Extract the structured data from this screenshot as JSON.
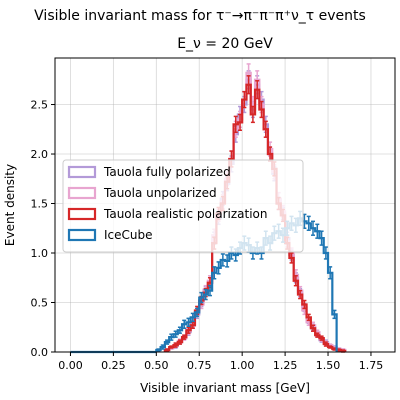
{
  "chart_data": {
    "type": "histogram",
    "title": "Visible invariant mass for τ⁻→π⁻π⁻π⁺ν_τ events",
    "subtitle": "E_ν = 20 GeV",
    "xlabel": "Visible invariant mass [GeV]",
    "ylabel": "Event density",
    "xlim": [
      -0.09,
      1.89
    ],
    "ylim": [
      0,
      2.97
    ],
    "xticks": [
      0.0,
      0.25,
      0.5,
      0.75,
      1.0,
      1.25,
      1.5,
      1.75
    ],
    "xtick_labels": [
      "0.00",
      "0.25",
      "0.50",
      "0.75",
      "1.00",
      "1.25",
      "1.50",
      "1.75"
    ],
    "yticks": [
      0.0,
      0.5,
      1.0,
      1.5,
      2.0,
      2.5
    ],
    "ytick_labels": [
      "0.0",
      "0.5",
      "1.0",
      "1.5",
      "2.0",
      "2.5"
    ],
    "grid": true,
    "legend_position": "center-left",
    "bin_width": 0.025,
    "series": [
      {
        "name": "Tauola fully polarized",
        "color": "#b39ad8",
        "alpha": 1.0,
        "bin_start": 0.55,
        "values": [
          0.02,
          0.04,
          0.06,
          0.1,
          0.15,
          0.2,
          0.27,
          0.38,
          0.5,
          0.62,
          0.7,
          1.15,
          1.35,
          1.55,
          1.7,
          1.9,
          2.2,
          2.4,
          2.5,
          2.75,
          2.45,
          2.7,
          2.55,
          2.3,
          2.0,
          1.8,
          1.5,
          1.4,
          1.15,
          0.98,
          0.75,
          0.6,
          0.45,
          0.32,
          0.25,
          0.18,
          0.12,
          0.1,
          0.06,
          0.05,
          0.03,
          0.02
        ],
        "errors": [
          0.01,
          0.01,
          0.02,
          0.02,
          0.02,
          0.03,
          0.03,
          0.04,
          0.04,
          0.04,
          0.05,
          0.06,
          0.06,
          0.07,
          0.07,
          0.08,
          0.08,
          0.08,
          0.08,
          0.09,
          0.08,
          0.09,
          0.08,
          0.08,
          0.07,
          0.07,
          0.06,
          0.06,
          0.06,
          0.05,
          0.05,
          0.04,
          0.04,
          0.03,
          0.03,
          0.02,
          0.02,
          0.02,
          0.01,
          0.01,
          0.01,
          0.01
        ]
      },
      {
        "name": "Tauola unpolarized",
        "color": "#e8a5d0",
        "alpha": 1.0,
        "bin_start": 0.55,
        "values": [
          0.02,
          0.04,
          0.07,
          0.11,
          0.14,
          0.21,
          0.28,
          0.4,
          0.48,
          0.63,
          0.72,
          1.18,
          1.38,
          1.52,
          1.75,
          1.95,
          2.25,
          2.35,
          2.55,
          2.82,
          2.5,
          2.75,
          2.5,
          2.25,
          2.05,
          1.82,
          1.55,
          1.42,
          1.12,
          1.0,
          0.78,
          0.62,
          0.42,
          0.3,
          0.27,
          0.2,
          0.13,
          0.09,
          0.07,
          0.04,
          0.03,
          0.02
        ],
        "errors": [
          0.01,
          0.01,
          0.02,
          0.02,
          0.02,
          0.03,
          0.03,
          0.04,
          0.04,
          0.04,
          0.05,
          0.06,
          0.06,
          0.07,
          0.07,
          0.08,
          0.08,
          0.08,
          0.08,
          0.09,
          0.08,
          0.09,
          0.08,
          0.08,
          0.07,
          0.07,
          0.06,
          0.06,
          0.06,
          0.05,
          0.05,
          0.04,
          0.04,
          0.03,
          0.03,
          0.02,
          0.02,
          0.02,
          0.01,
          0.01,
          0.01,
          0.01
        ]
      },
      {
        "name": "Tauola realistic polarization",
        "color": "#d62728",
        "alpha": 1.0,
        "bin_start": 0.55,
        "values": [
          0.02,
          0.05,
          0.07,
          0.1,
          0.15,
          0.22,
          0.27,
          0.42,
          0.52,
          0.6,
          0.7,
          1.1,
          1.4,
          1.5,
          1.72,
          1.95,
          2.3,
          2.32,
          2.55,
          2.7,
          2.4,
          2.65,
          2.45,
          2.25,
          2.0,
          1.85,
          1.5,
          1.38,
          1.1,
          0.95,
          0.72,
          0.58,
          0.48,
          0.35,
          0.24,
          0.17,
          0.14,
          0.08,
          0.05,
          0.03,
          0.02,
          0.01
        ],
        "errors": [
          0.01,
          0.01,
          0.02,
          0.02,
          0.02,
          0.03,
          0.03,
          0.04,
          0.04,
          0.04,
          0.05,
          0.06,
          0.06,
          0.07,
          0.07,
          0.08,
          0.08,
          0.08,
          0.08,
          0.09,
          0.08,
          0.09,
          0.08,
          0.08,
          0.07,
          0.07,
          0.06,
          0.06,
          0.06,
          0.05,
          0.05,
          0.04,
          0.04,
          0.03,
          0.03,
          0.02,
          0.02,
          0.02,
          0.01,
          0.01,
          0.01,
          0.01
        ]
      },
      {
        "name": "IceCube",
        "color": "#1f77b4",
        "alpha": 1.0,
        "bin_start": 0.5,
        "values": [
          0.02,
          0.05,
          0.1,
          0.15,
          0.18,
          0.22,
          0.28,
          0.3,
          0.35,
          0.4,
          0.55,
          0.58,
          0.62,
          0.8,
          0.85,
          0.93,
          0.92,
          1.0,
          0.98,
          1.05,
          1.1,
          1.08,
          1.0,
          1.05,
          1.0,
          1.15,
          1.1,
          1.2,
          1.22,
          1.18,
          1.25,
          1.3,
          1.28,
          1.35,
          1.32,
          1.3,
          1.25,
          1.22,
          1.15,
          1.0,
          0.8,
          0.38
        ],
        "errors": [
          0.01,
          0.02,
          0.02,
          0.03,
          0.03,
          0.03,
          0.04,
          0.04,
          0.04,
          0.04,
          0.05,
          0.05,
          0.05,
          0.06,
          0.06,
          0.06,
          0.06,
          0.06,
          0.06,
          0.06,
          0.07,
          0.07,
          0.06,
          0.06,
          0.06,
          0.07,
          0.07,
          0.07,
          0.07,
          0.07,
          0.07,
          0.07,
          0.07,
          0.07,
          0.07,
          0.07,
          0.07,
          0.07,
          0.07,
          0.06,
          0.06,
          0.04
        ]
      }
    ]
  }
}
